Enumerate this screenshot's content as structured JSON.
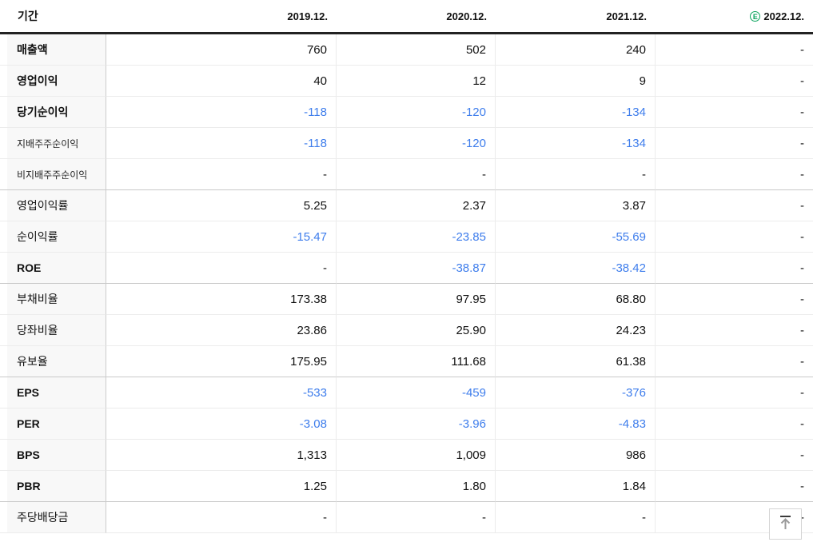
{
  "colors": {
    "negative_blue": "#3e7dec",
    "estimate_green": "#09a35c"
  },
  "header": {
    "period_label": "기간",
    "columns": [
      {
        "label": "2019.12.",
        "estimate": false
      },
      {
        "label": "2020.12.",
        "estimate": false
      },
      {
        "label": "2021.12.",
        "estimate": false
      },
      {
        "label": "2022.12.",
        "estimate": true,
        "badge": "E"
      }
    ]
  },
  "table": {
    "rows": [
      {
        "label": "매출액",
        "style": "main",
        "section_end": false,
        "values": [
          {
            "v": "760",
            "blue": false
          },
          {
            "v": "502",
            "blue": false
          },
          {
            "v": "240",
            "blue": false
          },
          {
            "v": "-",
            "blue": false
          }
        ]
      },
      {
        "label": "영업이익",
        "style": "main",
        "section_end": false,
        "values": [
          {
            "v": "40",
            "blue": false
          },
          {
            "v": "12",
            "blue": false
          },
          {
            "v": "9",
            "blue": false
          },
          {
            "v": "-",
            "blue": false
          }
        ]
      },
      {
        "label": "당기순이익",
        "style": "main",
        "section_end": false,
        "values": [
          {
            "v": "-118",
            "blue": true
          },
          {
            "v": "-120",
            "blue": true
          },
          {
            "v": "-134",
            "blue": true
          },
          {
            "v": "-",
            "blue": false
          }
        ]
      },
      {
        "label": "지배주주순이익",
        "style": "sub",
        "section_end": false,
        "values": [
          {
            "v": "-118",
            "blue": true
          },
          {
            "v": "-120",
            "blue": true
          },
          {
            "v": "-134",
            "blue": true
          },
          {
            "v": "-",
            "blue": false
          }
        ]
      },
      {
        "label": "비지배주주순이익",
        "style": "sub",
        "section_end": true,
        "values": [
          {
            "v": "-",
            "blue": false
          },
          {
            "v": "-",
            "blue": false
          },
          {
            "v": "-",
            "blue": false
          },
          {
            "v": "-",
            "blue": false
          }
        ]
      },
      {
        "label": "영업이익률",
        "style": "plain",
        "section_end": false,
        "values": [
          {
            "v": "5.25",
            "blue": false
          },
          {
            "v": "2.37",
            "blue": false
          },
          {
            "v": "3.87",
            "blue": false
          },
          {
            "v": "-",
            "blue": false
          }
        ]
      },
      {
        "label": "순이익률",
        "style": "plain",
        "section_end": false,
        "values": [
          {
            "v": "-15.47",
            "blue": true
          },
          {
            "v": "-23.85",
            "blue": true
          },
          {
            "v": "-55.69",
            "blue": true
          },
          {
            "v": "-",
            "blue": false
          }
        ]
      },
      {
        "label": "ROE",
        "style": "main",
        "section_end": true,
        "values": [
          {
            "v": "-",
            "blue": false
          },
          {
            "v": "-38.87",
            "blue": true
          },
          {
            "v": "-38.42",
            "blue": true
          },
          {
            "v": "-",
            "blue": false
          }
        ]
      },
      {
        "label": "부채비율",
        "style": "plain",
        "section_end": false,
        "values": [
          {
            "v": "173.38",
            "blue": false
          },
          {
            "v": "97.95",
            "blue": false
          },
          {
            "v": "68.80",
            "blue": false
          },
          {
            "v": "-",
            "blue": false
          }
        ]
      },
      {
        "label": "당좌비율",
        "style": "plain",
        "section_end": false,
        "values": [
          {
            "v": "23.86",
            "blue": false
          },
          {
            "v": "25.90",
            "blue": false
          },
          {
            "v": "24.23",
            "blue": false
          },
          {
            "v": "-",
            "blue": false
          }
        ]
      },
      {
        "label": "유보율",
        "style": "plain",
        "section_end": true,
        "values": [
          {
            "v": "175.95",
            "blue": false
          },
          {
            "v": "111.68",
            "blue": false
          },
          {
            "v": "61.38",
            "blue": false
          },
          {
            "v": "-",
            "blue": false
          }
        ]
      },
      {
        "label": "EPS",
        "style": "main",
        "section_end": false,
        "values": [
          {
            "v": "-533",
            "blue": true
          },
          {
            "v": "-459",
            "blue": true
          },
          {
            "v": "-376",
            "blue": true
          },
          {
            "v": "-",
            "blue": false
          }
        ]
      },
      {
        "label": "PER",
        "style": "main",
        "section_end": false,
        "values": [
          {
            "v": "-3.08",
            "blue": true
          },
          {
            "v": "-3.96",
            "blue": true
          },
          {
            "v": "-4.83",
            "blue": true
          },
          {
            "v": "-",
            "blue": false
          }
        ]
      },
      {
        "label": "BPS",
        "style": "main",
        "section_end": false,
        "values": [
          {
            "v": "1,313",
            "blue": false
          },
          {
            "v": "1,009",
            "blue": false
          },
          {
            "v": "986",
            "blue": false
          },
          {
            "v": "-",
            "blue": false
          }
        ]
      },
      {
        "label": "PBR",
        "style": "main",
        "section_end": true,
        "values": [
          {
            "v": "1.25",
            "blue": false
          },
          {
            "v": "1.80",
            "blue": false
          },
          {
            "v": "1.84",
            "blue": false
          },
          {
            "v": "-",
            "blue": false
          }
        ]
      },
      {
        "label": "주당배당금",
        "style": "plain",
        "section_end": false,
        "values": [
          {
            "v": "-",
            "blue": false
          },
          {
            "v": "-",
            "blue": false
          },
          {
            "v": "-",
            "blue": false
          },
          {
            "v": "-",
            "blue": false
          }
        ]
      }
    ]
  }
}
